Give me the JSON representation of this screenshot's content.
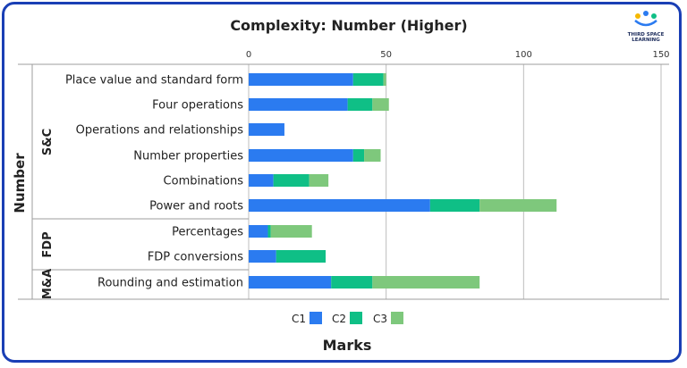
{
  "chart_data": {
    "type": "bar",
    "orientation": "horizontal",
    "stacked": true,
    "title": "Complexity: Number (Higher)",
    "xlabel": "Marks",
    "ylabel": "Number",
    "xlim": [
      0,
      150
    ],
    "xticks": [
      0,
      50,
      100,
      150
    ],
    "grid": true,
    "legend_position": "bottom",
    "groups": [
      {
        "name": "S&C",
        "categories": [
          "Place value and standard form",
          "Four operations",
          "Operations and relationships",
          "Number properties",
          "Combinations",
          "Power and roots"
        ]
      },
      {
        "name": "FDP",
        "categories": [
          "Percentages",
          "FDP conversions"
        ]
      },
      {
        "name": "M&A",
        "categories": [
          "Rounding and estimation"
        ]
      }
    ],
    "categories": [
      "Place value and standard form",
      "Four operations",
      "Operations and relationships",
      "Number properties",
      "Combinations",
      "Power and roots",
      "Percentages",
      "FDP conversions",
      "Rounding and estimation"
    ],
    "series": [
      {
        "name": "C1",
        "color": "#2b7bf0",
        "values": [
          38,
          36,
          13,
          38,
          9,
          66,
          7,
          10,
          30
        ]
      },
      {
        "name": "C2",
        "color": "#0fbf86",
        "values": [
          11,
          9,
          0,
          4,
          13,
          18,
          1,
          18,
          15
        ]
      },
      {
        "name": "C3",
        "color": "#7ec87c",
        "values": [
          1,
          6,
          0,
          6,
          7,
          28,
          15,
          0,
          39
        ]
      }
    ]
  },
  "logo": {
    "line1": "THIRD SPACE",
    "line2": "LEARNING"
  }
}
